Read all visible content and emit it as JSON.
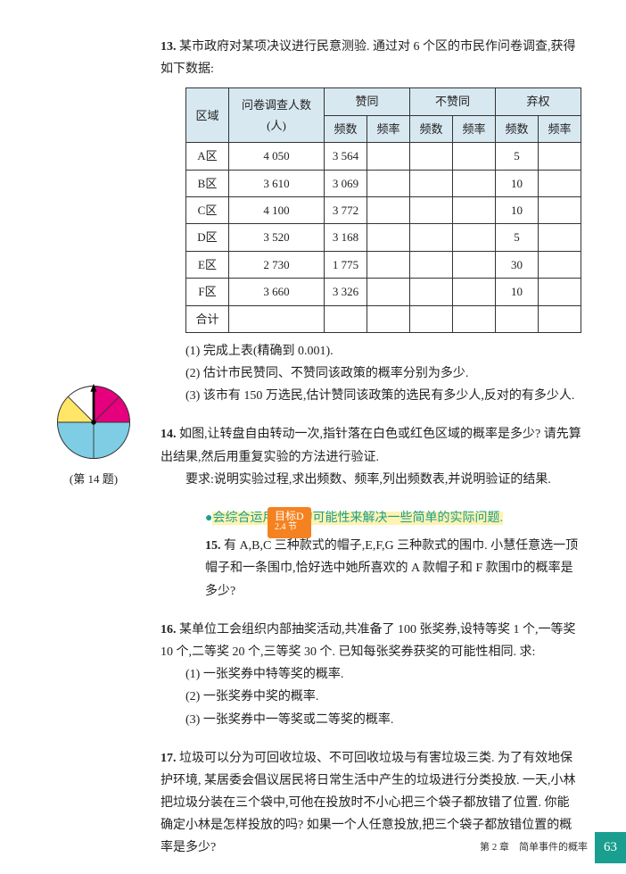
{
  "q13": {
    "num": "13.",
    "intro": "某市政府对某项决议进行民意测验. 通过对 6 个区的市民作问卷调查,获得如下数据:",
    "table": {
      "header_row1": [
        "区域",
        "问卷调查人数(人)",
        "赞同",
        "不赞同",
        "弃权"
      ],
      "header_row2": [
        "频数",
        "频率",
        "频数",
        "频率",
        "频数",
        "频率"
      ],
      "rows": [
        [
          "A区",
          "4 050",
          "3 564",
          "",
          "",
          "",
          "5",
          ""
        ],
        [
          "B区",
          "3 610",
          "3 069",
          "",
          "",
          "",
          "10",
          ""
        ],
        [
          "C区",
          "4 100",
          "3 772",
          "",
          "",
          "",
          "10",
          ""
        ],
        [
          "D区",
          "3 520",
          "3 168",
          "",
          "",
          "",
          "5",
          ""
        ],
        [
          "E区",
          "2 730",
          "1 775",
          "",
          "",
          "",
          "30",
          ""
        ],
        [
          "F区",
          "3 660",
          "3 326",
          "",
          "",
          "",
          "10",
          ""
        ],
        [
          "合计",
          "",
          "",
          "",
          "",
          "",
          "",
          ""
        ]
      ],
      "header_bg": "#d8e8f0"
    },
    "subs": [
      "(1) 完成上表(精确到 0.001).",
      "(2) 估计市民赞同、不赞同该政策的概率分别为多少.",
      "(3) 该市有 150 万选民,估计赞同该政策的选民有多少人,反对的有多少人."
    ]
  },
  "q14": {
    "num": "14.",
    "text": "如图,让转盘自由转动一次,指针落在白色或红色区域的概率是多少? 请先算出结果,然后用重复实验的方法进行验证.",
    "req": "要求:说明实验过程,求出频数、频率,列出频数表,并说明验证的结果.",
    "caption": "(第 14 题)",
    "spinner_colors": {
      "top_right": "#e6007e",
      "right": "#ffffff",
      "bottom": "#7ecde4",
      "left": "#ffe666"
    }
  },
  "goal": {
    "badge": "目标D",
    "badge_sub": "2.4 节",
    "title": "会综合运用事件的可能性来解决一些简单的实际问题."
  },
  "q15": {
    "num": "15.",
    "text": "有 A,B,C 三种款式的帽子,E,F,G 三种款式的围巾. 小慧任意选一顶帽子和一条围巾,恰好选中她所喜欢的 A 款帽子和 F 款围巾的概率是多少?"
  },
  "q16": {
    "num": "16.",
    "text": "某单位工会组织内部抽奖活动,共准备了 100 张奖券,设特等奖 1 个,一等奖 10 个,二等奖 20 个,三等奖 30 个. 已知每张奖券获奖的可能性相同. 求:",
    "subs": [
      "(1) 一张奖券中特等奖的概率.",
      "(2) 一张奖券中奖的概率.",
      "(3) 一张奖券中一等奖或二等奖的概率."
    ]
  },
  "q17": {
    "num": "17.",
    "text": "垃圾可以分为可回收垃圾、不可回收垃圾与有害垃圾三类. 为了有效地保护环境, 某居委会倡议居民将日常生活中产生的垃圾进行分类投放. 一天,小林把垃圾分装在三个袋中,可他在投放时不小心把三个袋子都放错了位置. 你能确定小林是怎样投放的吗? 如果一个人任意投放,把三个袋子都放错位置的概率是多少?"
  },
  "footer": {
    "chapter": "第 2 章　简单事件的概率",
    "page": "63"
  }
}
